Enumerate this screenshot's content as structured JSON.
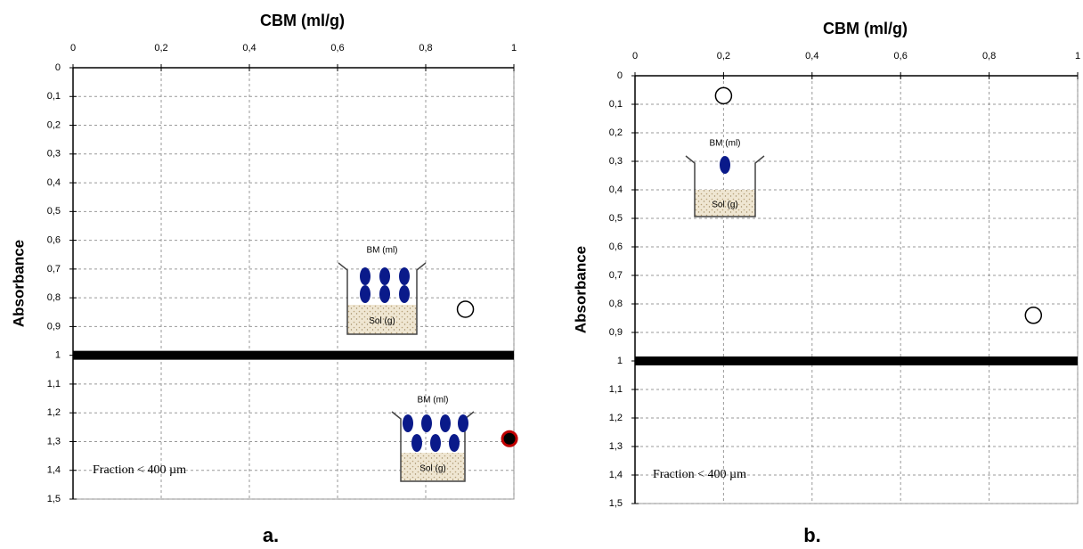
{
  "chart_data": [
    {
      "type": "scatter",
      "title": "CBM (ml/g)",
      "y_label": "Absorbance",
      "caption": "a.",
      "xlim": [
        0,
        1
      ],
      "ylim": [
        0,
        1.5
      ],
      "y_inverted": true,
      "grid": true,
      "xticks": [
        0,
        {
          "value": 0.2,
          "label": "0,2"
        },
        {
          "value": 0.4,
          "label": "0,4"
        },
        {
          "value": 0.6,
          "label": "0,6"
        },
        {
          "value": 0.8,
          "label": "0,8"
        },
        1
      ],
      "yticks": [
        0,
        {
          "value": 0.1,
          "label": "0,1"
        },
        {
          "value": 0.2,
          "label": "0,2"
        },
        {
          "value": 0.3,
          "label": "0,3"
        },
        {
          "value": 0.4,
          "label": "0,4"
        },
        {
          "value": 0.5,
          "label": "0,5"
        },
        {
          "value": 0.6,
          "label": "0,6"
        },
        {
          "value": 0.7,
          "label": "0,7"
        },
        {
          "value": 0.8,
          "label": "0,8"
        },
        {
          "value": 0.9,
          "label": "0,9"
        },
        1,
        {
          "value": 1.1,
          "label": "1,1"
        },
        {
          "value": 1.2,
          "label": "1,2"
        },
        {
          "value": 1.3,
          "label": "1,3"
        },
        {
          "value": 1.4,
          "label": "1,4"
        },
        {
          "value": 1.5,
          "label": "1,5"
        }
      ],
      "hline": 1,
      "series": [
        {
          "color": "#000000",
          "fill": "none",
          "x": [
            0.89
          ],
          "values": [
            0.84
          ]
        },
        {
          "color": "#c00000",
          "fill": "#000000",
          "x": [
            0.99
          ],
          "values": [
            1.29
          ]
        }
      ],
      "annotation": "Fraction < 400 µm",
      "insets": [
        {
          "top": "BM (ml)",
          "bottom": "Sol (g)"
        },
        {
          "top": "BM (ml)",
          "bottom": "Sol (g)"
        }
      ]
    },
    {
      "type": "scatter",
      "title": "CBM (ml/g)",
      "y_label": "Absorbance",
      "caption": "b.",
      "xlim": [
        0,
        1
      ],
      "ylim": [
        0,
        1.5
      ],
      "y_inverted": true,
      "grid": true,
      "xticks": [
        0,
        {
          "value": 0.2,
          "label": "0,2"
        },
        {
          "value": 0.4,
          "label": "0,4"
        },
        {
          "value": 0.6,
          "label": "0,6"
        },
        {
          "value": 0.8,
          "label": "0,8"
        },
        1
      ],
      "yticks": [
        0,
        {
          "value": 0.1,
          "label": "0,1"
        },
        {
          "value": 0.2,
          "label": "0,2"
        },
        {
          "value": 0.3,
          "label": "0,3"
        },
        {
          "value": 0.4,
          "label": "0,4"
        },
        {
          "value": 0.5,
          "label": "0,5"
        },
        {
          "value": 0.6,
          "label": "0,6"
        },
        {
          "value": 0.7,
          "label": "0,7"
        },
        {
          "value": 0.8,
          "label": "0,8"
        },
        {
          "value": 0.9,
          "label": "0,9"
        },
        1,
        {
          "value": 1.1,
          "label": "1,1"
        },
        {
          "value": 1.2,
          "label": "1,2"
        },
        {
          "value": 1.3,
          "label": "1,3"
        },
        {
          "value": 1.4,
          "label": "1,4"
        },
        {
          "value": 1.5,
          "label": "1,5"
        }
      ],
      "hline": 1,
      "series": [
        {
          "color": "#000000",
          "fill": "none",
          "x": [
            0.2,
            0.9
          ],
          "values": [
            0.07,
            0.84
          ]
        }
      ],
      "annotation": "Fraction < 400 µm",
      "insets": [
        {
          "top": "BM (ml)",
          "bottom": "Sol (g)"
        }
      ]
    }
  ]
}
